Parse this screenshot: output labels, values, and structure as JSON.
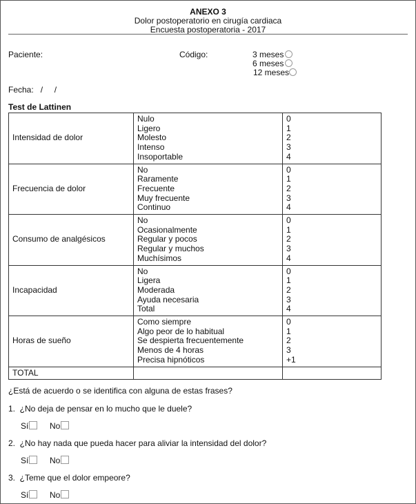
{
  "header": {
    "line1": "ANEXO 3",
    "line2": "Dolor postoperatorio en cirugía cardiaca",
    "line3": "Encuesta postoperatoria - 2017"
  },
  "form": {
    "paciente": "Paciente:",
    "codigo": "Código:",
    "options": [
      "3 meses",
      "6 meses",
      "12 meses"
    ],
    "fecha": "Fecha:",
    "fecha_sep": "/     /"
  },
  "test_title": "Test de Lattinen",
  "table": {
    "rows": [
      {
        "label": "Intensidad de dolor",
        "items": [
          "Nulo",
          "Ligero",
          "Molesto",
          "Intenso",
          "Insoportable"
        ],
        "scores": [
          "0",
          "1",
          "2",
          "3",
          "4"
        ]
      },
      {
        "label": "Frecuencia de dolor",
        "items": [
          "No",
          "Raramente",
          "Frecuente",
          "Muy frecuente",
          "Continuo"
        ],
        "scores": [
          "0",
          "1",
          "2",
          "3",
          "4"
        ]
      },
      {
        "label": "Consumo de analgésicos",
        "items": [
          "No",
          "Ocasionalmente",
          "Regular y pocos",
          "Regular y muchos",
          "Muchísimos"
        ],
        "scores": [
          "0",
          "1",
          "2",
          "3",
          "4"
        ]
      },
      {
        "label": "Incapacidad",
        "items": [
          "No",
          "Ligera",
          "Moderada",
          "Ayuda necesaria",
          "Total"
        ],
        "scores": [
          "0",
          "1",
          "2",
          "3",
          "4"
        ]
      },
      {
        "label": "Horas de sueño",
        "items": [
          "Como siempre",
          "Algo peor de lo habitual",
          "Se despierta frecuentemente",
          "Menos de 4 horas",
          "Precisa hipnóticos"
        ],
        "scores": [
          "0",
          "1",
          "2",
          "3",
          "+1"
        ]
      }
    ],
    "total": "TOTAL"
  },
  "questions": {
    "intro": "¿Está de acuerdo o se identifica con alguna de estas frases?",
    "yes": "Sí",
    "no": "No",
    "items": [
      "1.  ¿No deja de pensar en lo mucho que le duele?",
      "2.  ¿No hay nada que pueda hacer para aliviar la intensidad del dolor?",
      "3.  ¿Teme que el dolor empeore?"
    ]
  }
}
